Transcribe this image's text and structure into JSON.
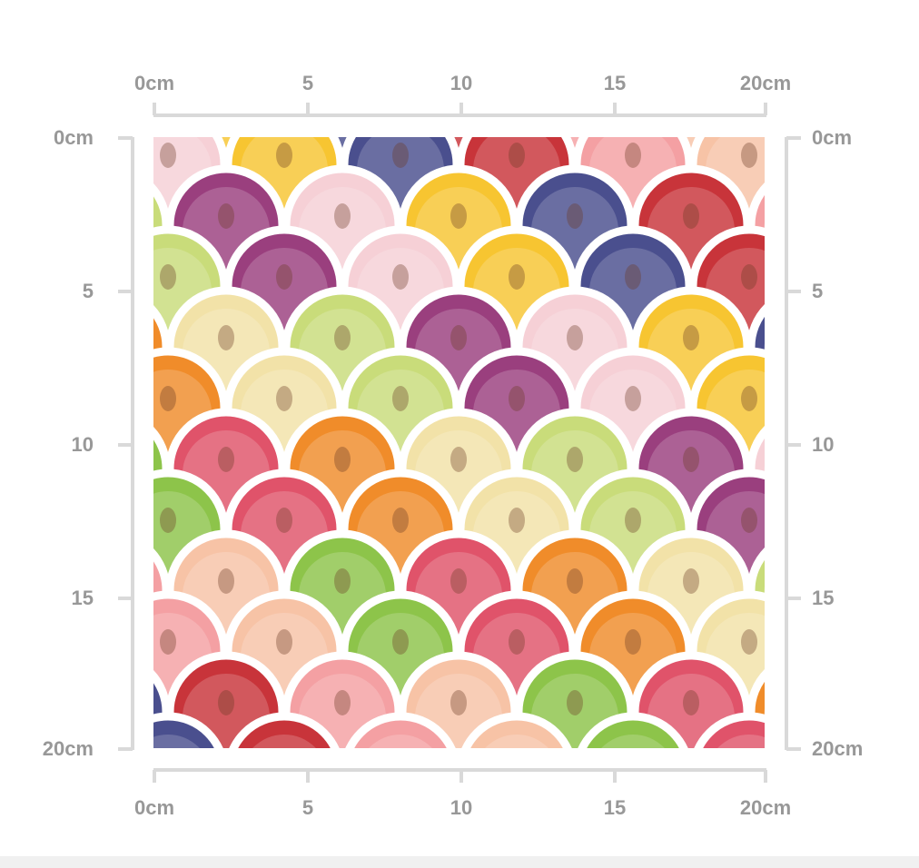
{
  "rulers": {
    "top": [
      "0cm",
      "5",
      "10",
      "15",
      "20cm"
    ],
    "bottom": [
      "0cm",
      "5",
      "10",
      "15",
      "20cm"
    ],
    "left": [
      "0cm",
      "5",
      "10",
      "15",
      "20cm"
    ],
    "right": [
      "0cm",
      "5",
      "10",
      "15",
      "20cm"
    ]
  },
  "pattern": {
    "description_colors": [
      "#c8343a",
      "#f08c2a",
      "#f7c531",
      "#8dc44a",
      "#9a3f7e",
      "#f4a0a3",
      "#f2e2a8",
      "#4a4f8e",
      "#e0536a",
      "#f6d0d6",
      "#f7c3a6",
      "#c9dc7a"
    ]
  }
}
